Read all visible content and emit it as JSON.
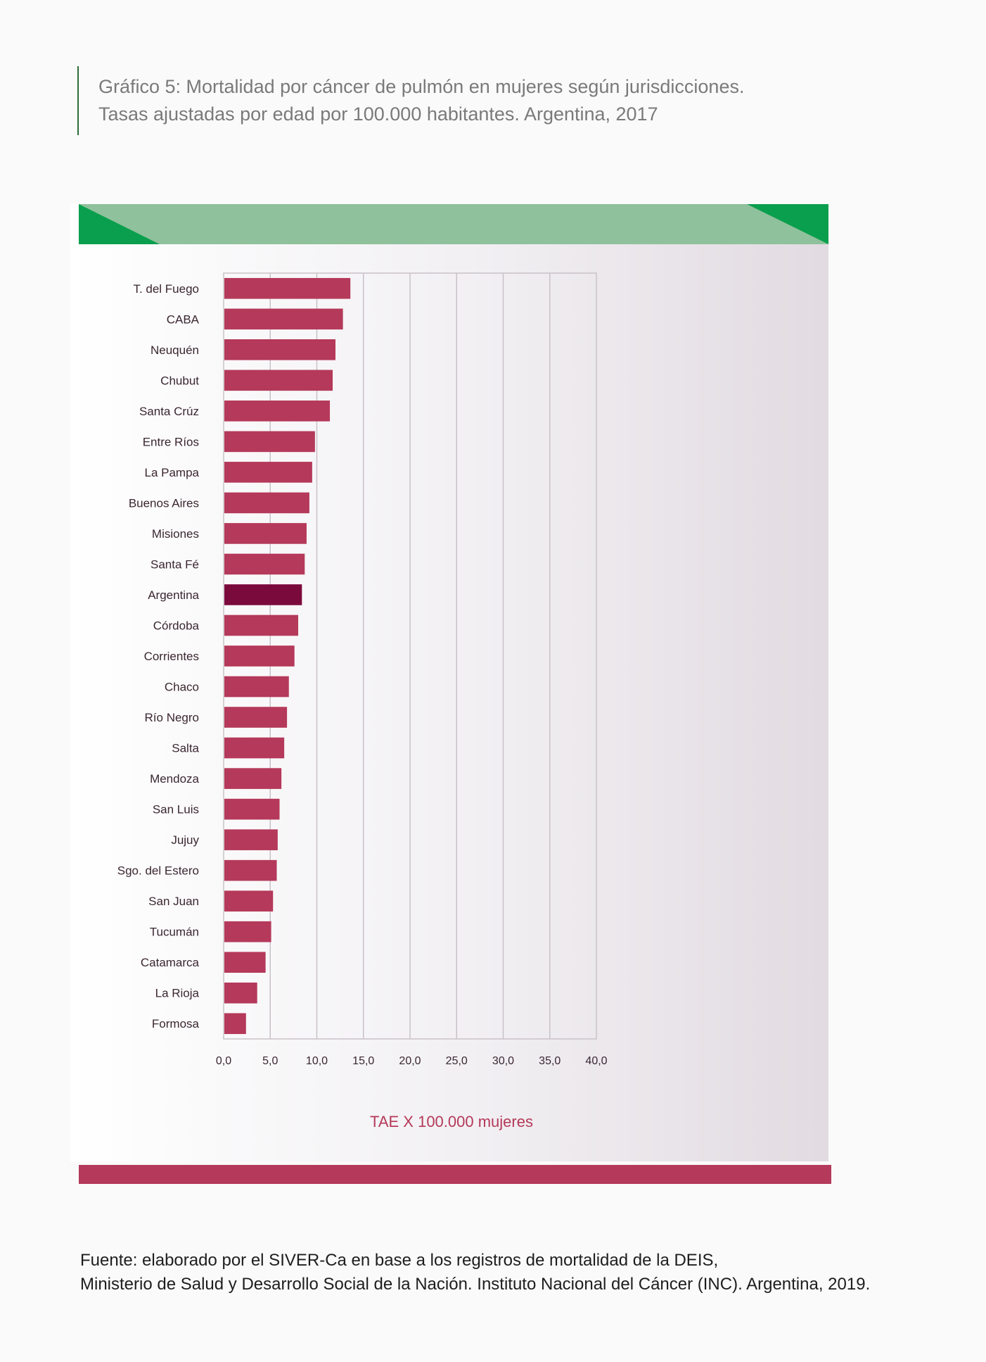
{
  "title": {
    "line1": "Gráfico 5: Mortalidad por cáncer de pulmón en mujeres según jurisdicciones.",
    "line2": "Tasas ajustadas por edad por 100.000 habitantes. Argentina, 2017"
  },
  "colors": {
    "bar": "#b5395a",
    "bar_highlight": "#7b0a3c",
    "band_light": "#8fc19c",
    "band_dark": "#0a9f4e",
    "grid": "#c9c2c8"
  },
  "chart_data": {
    "type": "bar",
    "orientation": "horizontal",
    "categories": [
      "T. del Fuego",
      "CABA",
      "Neuquén",
      "Chubut",
      "Santa Crúz",
      "Entre Ríos",
      "La Pampa",
      "Buenos Aires",
      "Misiones",
      "Santa Fé",
      "Argentina",
      "Córdoba",
      "Corrientes",
      "Chaco",
      "Río Negro",
      "Salta",
      "Mendoza",
      "San Luis",
      "Jujuy",
      "Sgo. del Estero",
      "San Juan",
      "Tucumán",
      "Catamarca",
      "La Rioja",
      "Formosa"
    ],
    "values": [
      13.6,
      12.8,
      12.0,
      11.7,
      11.4,
      9.8,
      9.5,
      9.2,
      8.9,
      8.7,
      8.4,
      8.0,
      7.6,
      7.0,
      6.8,
      6.5,
      6.2,
      6.0,
      5.8,
      5.7,
      5.3,
      5.1,
      4.5,
      3.6,
      2.4
    ],
    "highlight": "Argentina",
    "xlabel": "TAE X 100.000 mujeres",
    "xlim": [
      0,
      40
    ],
    "xticks": [
      "0,0",
      "5,0",
      "10,0",
      "15,0",
      "20,0",
      "25,0",
      "30,0",
      "35,0",
      "40,0"
    ],
    "grid": true
  },
  "footer": {
    "line1": "Fuente: elaborado por el SIVER-Ca en base a los registros de mortalidad de la DEIS,",
    "line2": "Ministerio de Salud y Desarrollo Social de la Nación. Instituto Nacional del Cáncer (INC). Argentina, 2019."
  }
}
